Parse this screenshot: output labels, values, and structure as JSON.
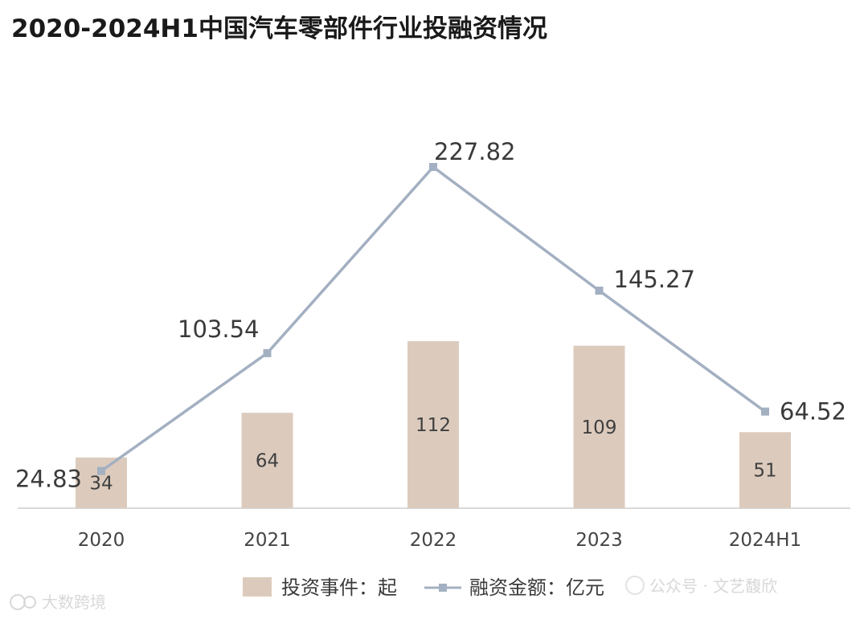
{
  "title": "2020-2024H1中国汽车零部件行业投融资情况",
  "chart_data": {
    "type": "bar",
    "categories": [
      "2020",
      "2021",
      "2022",
      "2023",
      "2024H1"
    ],
    "series": [
      {
        "name": "投资事件：起",
        "type": "bar",
        "values": [
          34,
          64,
          112,
          109,
          51
        ],
        "color": "#dccbbd"
      },
      {
        "name": "融资金额：亿元",
        "type": "line",
        "values": [
          24.83,
          103.54,
          227.82,
          145.27,
          64.52
        ],
        "color": "#a3b0c2"
      }
    ],
    "bar_axis_range": [
      0,
      250
    ],
    "line_axis_range": [
      0,
      270
    ],
    "grid": false,
    "legend_position": "bottom"
  },
  "watermarks": {
    "left": "大数跨境",
    "right": "公众号 · 文艺馥欣"
  }
}
